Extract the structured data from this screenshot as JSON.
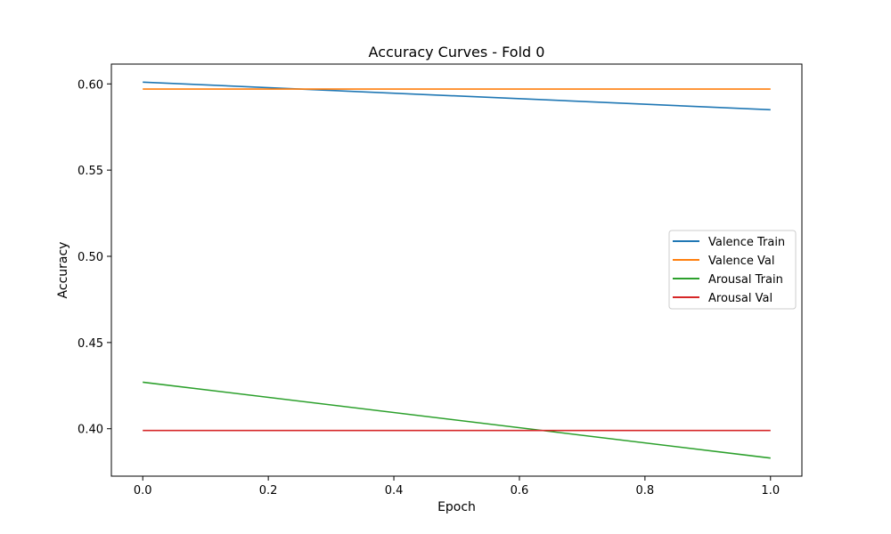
{
  "chart_data": {
    "type": "line",
    "title": "Accuracy Curves - Fold 0",
    "xlabel": "Epoch",
    "ylabel": "Accuracy",
    "xlim": [
      -0.05,
      1.05
    ],
    "ylim": [
      0.3725,
      0.6115
    ],
    "xticks": [
      0.0,
      0.2,
      0.4,
      0.6,
      0.8,
      1.0
    ],
    "xtick_labels": [
      "0.0",
      "0.2",
      "0.4",
      "0.6",
      "0.8",
      "1.0"
    ],
    "yticks": [
      0.4,
      0.45,
      0.5,
      0.55,
      0.6
    ],
    "ytick_labels": [
      "0.40",
      "0.45",
      "0.50",
      "0.55",
      "0.60"
    ],
    "grid": false,
    "legend_position": "center-right",
    "series": [
      {
        "name": "Valence Train",
        "color": "#1f77b4",
        "x": [
          0,
          1
        ],
        "values": [
          0.601,
          0.585
        ]
      },
      {
        "name": "Valence Val",
        "color": "#ff7f0e",
        "x": [
          0,
          1
        ],
        "values": [
          0.597,
          0.597
        ]
      },
      {
        "name": "Arousal Train",
        "color": "#2ca02c",
        "x": [
          0,
          1
        ],
        "values": [
          0.427,
          0.383
        ]
      },
      {
        "name": "Arousal Val",
        "color": "#d62728",
        "x": [
          0,
          1
        ],
        "values": [
          0.399,
          0.399
        ]
      }
    ]
  }
}
